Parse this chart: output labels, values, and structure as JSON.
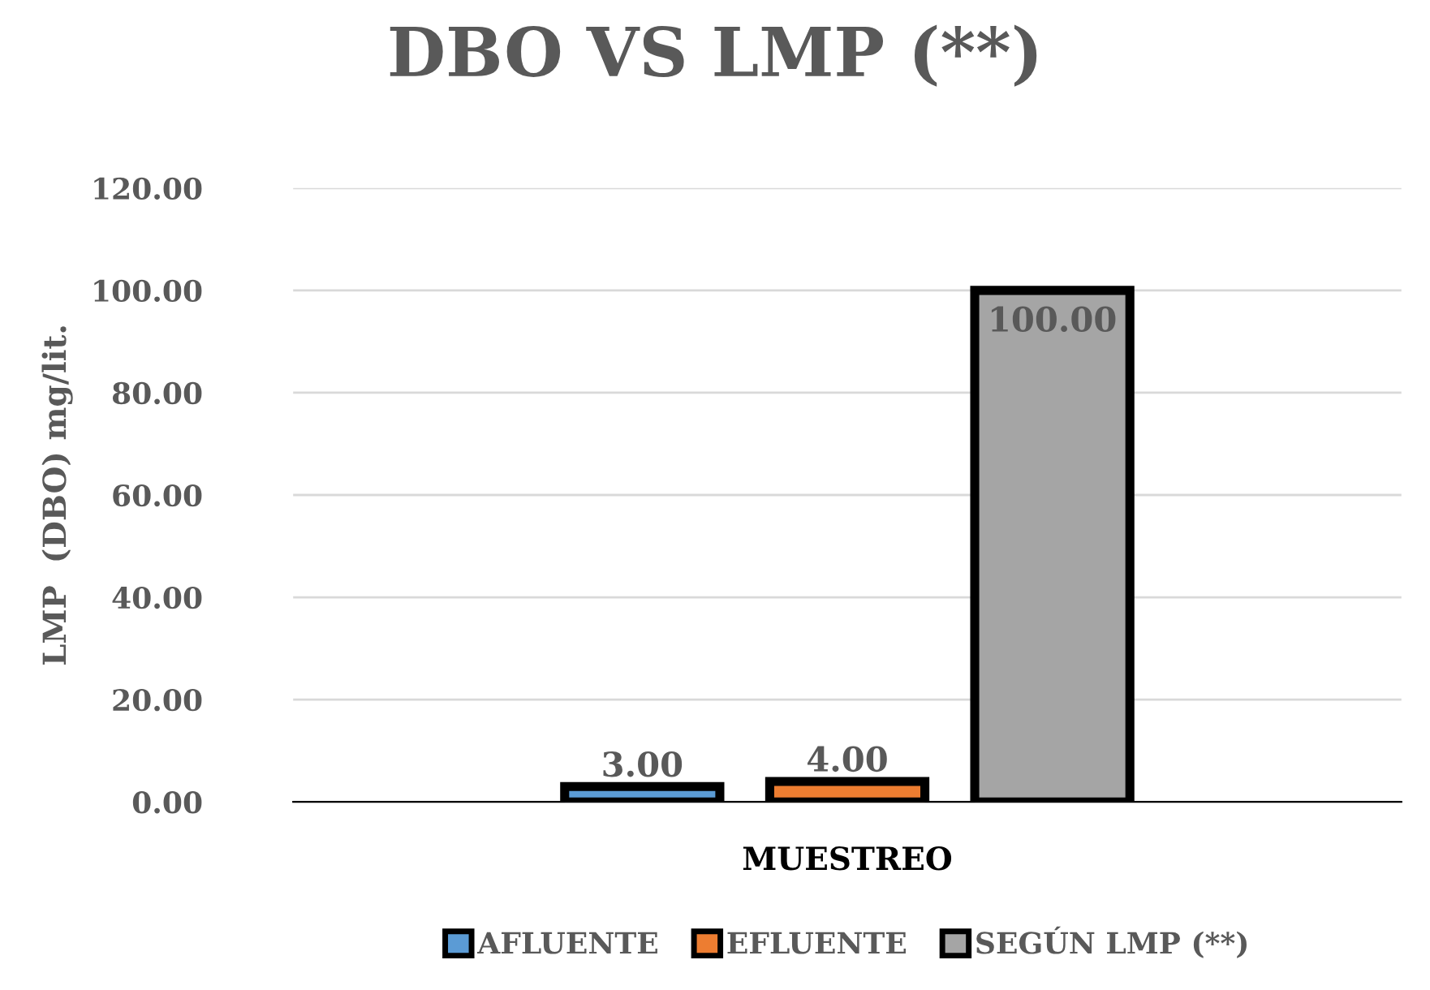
{
  "chart_data": {
    "type": "bar",
    "title": "DBO VS LMP (**)",
    "xlabel": "MUESTREO",
    "ylabel": "LMP  (DBO) mg/lit.",
    "categories": [
      null
    ],
    "series": [
      {
        "name": "AFLUENTE",
        "color": "#5b9bd5",
        "values": [
          3.0
        ],
        "value_labels": [
          "3.00"
        ]
      },
      {
        "name": "EFLUENTE",
        "color": "#ed7d31",
        "values": [
          4.0
        ],
        "value_labels": [
          "4.00"
        ]
      },
      {
        "name": "SEGÚN LMP (**)",
        "color": "#a5a5a5",
        "values": [
          100.0
        ],
        "value_labels": [
          "100.00"
        ]
      }
    ],
    "ylim": [
      0,
      120
    ],
    "yticks": [
      {
        "value": 0,
        "label": "0.00"
      },
      {
        "value": 20,
        "label": "20.00"
      },
      {
        "value": 40,
        "label": "40.00"
      },
      {
        "value": 60,
        "label": "60.00"
      },
      {
        "value": 80,
        "label": "80.00"
      },
      {
        "value": 100,
        "label": "100.00"
      },
      {
        "value": 120,
        "label": "120.00"
      }
    ],
    "grid": "y",
    "legend": "bottom"
  }
}
